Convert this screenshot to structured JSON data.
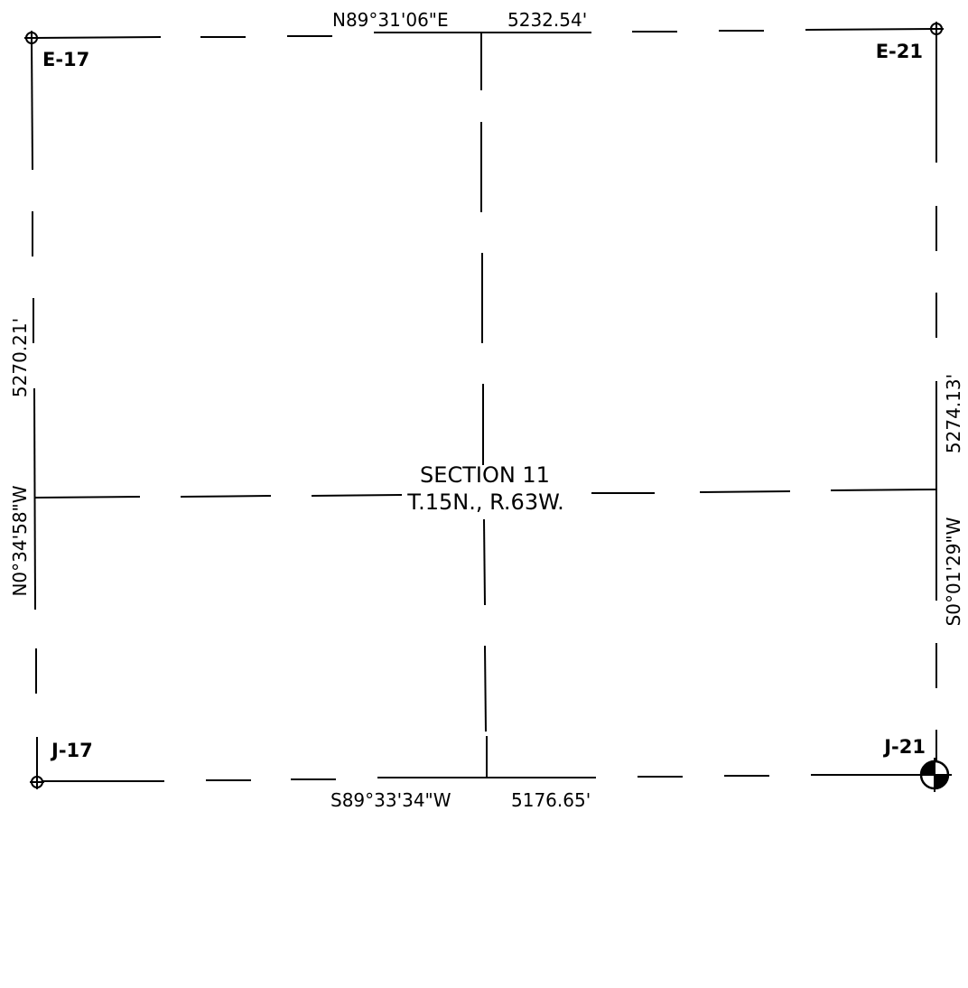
{
  "section": {
    "title": "SECTION 11",
    "township_range": "T.15N., R.63W."
  },
  "corners": {
    "northwest": "E-17",
    "northeast": "E-21",
    "southwest": "J-17",
    "southeast": "J-21"
  },
  "boundaries": {
    "north": {
      "bearing": "N89°31'06\"E",
      "distance": "5232.54'"
    },
    "south": {
      "bearing": "S89°33'34\"W",
      "distance": "5176.65'"
    },
    "west": {
      "bearing": "N0°34'58\"W",
      "distance": "5270.21'"
    },
    "east": {
      "bearing": "S0°01'29\"W",
      "distance": "5274.13'"
    }
  }
}
